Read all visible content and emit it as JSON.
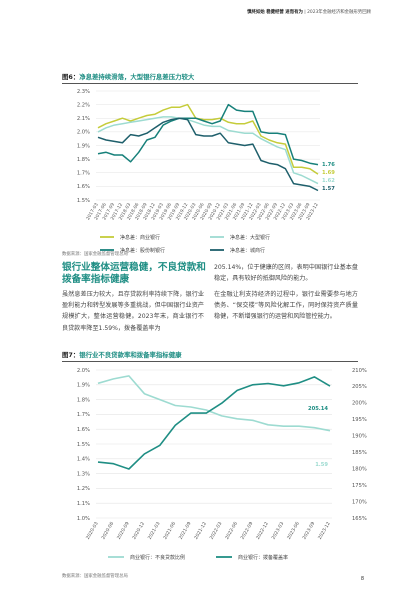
{
  "header": {
    "bold": "慎终如始 稳健经营 进而有为",
    "rest": " | 2023年金融经济和金融形势回顾"
  },
  "figure6": {
    "label": "图6：",
    "title": "净息差持续滑落，大型银行息差压力较大",
    "source": "数据来源：国家金融监督管理总局"
  },
  "figure7": {
    "label": "图7：",
    "title": "银行业不良贷款率和拨备率指标健康",
    "source": "数据来源：国家金融监督管理总局"
  },
  "section": {
    "title": "银行业整体运营稳健，不良贷款和拨备率指标健康",
    "left_text": "虽然息差压力较大，且存贷款利率持续下降，银行业盈利能力和转型发展等多重挑战，但中国银行业资产规模扩大，整体运营稳健。2023年末，商业银行不良贷款率降至1.59%，拨备覆盖率为",
    "right_text_top": "205.14%，位于健康的区间，表明中国银行业基本盘稳定，具有较好的抵御风险的能力。",
    "right_text_bottom": "在金融让利支持经济的过程中，银行业需要参与地方债务、“保交楼”等风险化解工作，同时保持资产质量稳健，不断增强银行的运营和风险管控能力。"
  },
  "page_number": "8",
  "chart_data": [
    {
      "type": "line",
      "title": "净息差持续滑落，大型银行息差压力较大",
      "x": [
        "2017-03",
        "2017-06",
        "2017-09",
        "2017-12",
        "2018-03",
        "2018-06",
        "2018-09",
        "2018-12",
        "2019-03",
        "2019-06",
        "2019-09",
        "2019-12",
        "2020-03",
        "2020-06",
        "2020-09",
        "2020-12",
        "2021-03",
        "2021-06",
        "2021-09",
        "2021-12",
        "2022-03",
        "2022-06",
        "2022-09",
        "2022-12",
        "2023-03",
        "2023-06",
        "2023-09",
        "2023-12"
      ],
      "x_tick_labels": [
        "2017-03",
        "2017-06",
        "2017-09",
        "2017-12",
        "2018-03",
        "2018-06",
        "2018-09",
        "2018-12",
        "2019-03",
        "2019-06",
        "2019-09",
        "2019-12",
        "2020-03",
        "2020-06",
        "2020-09",
        "2020-12",
        "2021-03",
        "2021-06",
        "2021-09",
        "2021-12",
        "2022-03",
        "2022-06",
        "2022-09",
        "2022-12",
        "2023-03",
        "2023-06",
        "2023-09",
        "2023-12"
      ],
      "y_ticks": [
        "1.5%",
        "1.6%",
        "1.7%",
        "1.8%",
        "1.9%",
        "2.0%",
        "2.1%",
        "2.2%",
        "2.3%"
      ],
      "ylim": [
        1.5,
        2.3
      ],
      "grid": true,
      "legend_position": "bottom",
      "series": [
        {
          "name": "净息差：商业银行",
          "color": "#c5cc3a",
          "values": [
            2.03,
            2.06,
            2.08,
            2.1,
            2.08,
            2.1,
            2.12,
            2.13,
            2.16,
            2.18,
            2.18,
            2.2,
            2.1,
            2.09,
            2.09,
            2.1,
            2.07,
            2.06,
            2.06,
            2.08,
            1.97,
            1.94,
            1.92,
            1.91,
            1.74,
            1.74,
            1.73,
            1.69
          ]
        },
        {
          "name": "净息差：大型银行",
          "color": "#9ddbd1",
          "values": [
            2.0,
            2.03,
            2.05,
            2.06,
            2.07,
            2.08,
            2.09,
            2.1,
            2.11,
            2.11,
            2.1,
            2.09,
            2.07,
            2.05,
            2.04,
            2.04,
            2.01,
            2.0,
            1.99,
            1.99,
            1.95,
            1.92,
            1.89,
            1.87,
            1.7,
            1.68,
            1.65,
            1.62
          ]
        },
        {
          "name": "净息差：股份制银行",
          "color": "#17807a",
          "values": [
            1.84,
            1.85,
            1.83,
            1.83,
            1.78,
            1.85,
            1.94,
            1.96,
            2.05,
            2.08,
            2.1,
            2.1,
            2.1,
            2.08,
            2.06,
            2.08,
            2.2,
            2.16,
            2.15,
            2.15,
            2.0,
            1.99,
            1.99,
            1.98,
            1.8,
            1.79,
            1.77,
            1.76
          ]
        },
        {
          "name": "净息差：城商行",
          "color": "#1e5f6b",
          "values": [
            1.96,
            1.94,
            1.93,
            1.92,
            1.98,
            1.97,
            1.99,
            2.03,
            2.07,
            2.09,
            2.1,
            2.09,
            1.98,
            1.97,
            1.97,
            1.99,
            1.92,
            1.91,
            1.9,
            1.91,
            1.79,
            1.77,
            1.76,
            1.73,
            1.62,
            1.61,
            1.6,
            1.57
          ]
        }
      ],
      "end_labels": [
        "1.76",
        "1.69",
        "1.62",
        "1.57"
      ]
    },
    {
      "type": "line",
      "title": "银行业不良贷款率和拨备率指标健康",
      "x": [
        "2020-03",
        "2020-06",
        "2020-09",
        "2020-12",
        "2021-03",
        "2021-06",
        "2021-09",
        "2021-12",
        "2022-03",
        "2022-06",
        "2022-09",
        "2022-12",
        "2023-03",
        "2023-06",
        "2023-09",
        "2023-12"
      ],
      "x_tick_labels": [
        "2020-03",
        "2020-06",
        "2020-09",
        "2020-12",
        "2021-03",
        "2021-06",
        "2021-09",
        "2021-12",
        "2022-03",
        "2022-06",
        "2022-09",
        "2022-12",
        "2023-03",
        "2023-06",
        "2023-09",
        "2023-12"
      ],
      "y_left_ticks": [
        "1.0%",
        "1.1%",
        "1.2%",
        "1.3%",
        "1.4%",
        "1.5%",
        "1.6%",
        "1.7%",
        "1.8%",
        "1.9%",
        "2.0%"
      ],
      "y_right_ticks": [
        "165%",
        "170%",
        "175%",
        "180%",
        "185%",
        "190%",
        "195%",
        "200%",
        "205%",
        "210%"
      ],
      "ylim_left": [
        1.0,
        2.0
      ],
      "ylim_right": [
        165,
        210
      ],
      "grid": true,
      "legend_position": "bottom",
      "series": [
        {
          "name": "商业银行：不良贷款比例",
          "axis": "left",
          "color": "#9ddbd1",
          "values": [
            1.91,
            1.94,
            1.96,
            1.84,
            1.8,
            1.76,
            1.75,
            1.73,
            1.69,
            1.67,
            1.66,
            1.63,
            1.62,
            1.62,
            1.61,
            1.59
          ]
        },
        {
          "name": "商业银行：拨备覆盖率",
          "axis": "right",
          "color": "#1f8e84",
          "values": [
            182.0,
            181.5,
            179.9,
            184.5,
            187.1,
            193.2,
            196.9,
            196.9,
            199.9,
            203.8,
            205.5,
            205.9,
            205.2,
            206.1,
            207.9,
            205.1
          ]
        }
      ],
      "end_labels": [
        "205.14",
        "1.59"
      ]
    }
  ]
}
